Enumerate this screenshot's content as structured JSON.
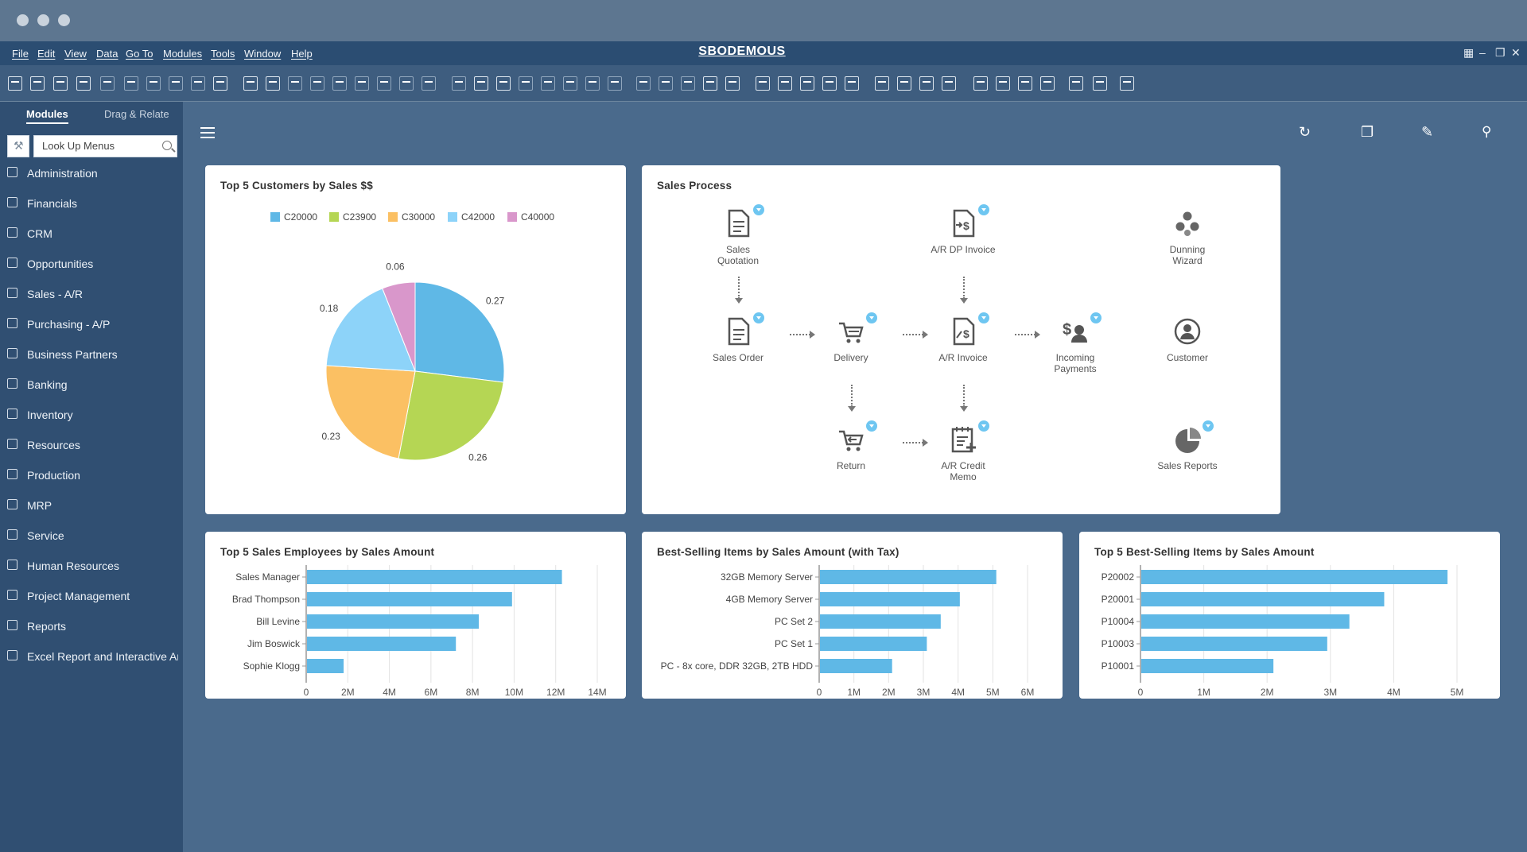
{
  "app": {
    "title": "SBODEMOUS",
    "menu": [
      "File",
      "Edit",
      "View",
      "Data",
      "Go To",
      "Modules",
      "Tools",
      "Window",
      "Help"
    ]
  },
  "sidebar": {
    "tabs": [
      "Modules",
      "Drag & Relate"
    ],
    "search_placeholder": "Look Up Menus",
    "items": [
      {
        "label": "Administration",
        "icon": "admin-icon"
      },
      {
        "label": "Financials",
        "icon": "financials-icon"
      },
      {
        "label": "CRM",
        "icon": "crm-icon"
      },
      {
        "label": "Opportunities",
        "icon": "opportunities-icon"
      },
      {
        "label": "Sales - A/R",
        "icon": "sales-icon"
      },
      {
        "label": "Purchasing - A/P",
        "icon": "cart-icon"
      },
      {
        "label": "Business Partners",
        "icon": "partners-icon"
      },
      {
        "label": "Banking",
        "icon": "bank-icon"
      },
      {
        "label": "Inventory",
        "icon": "inventory-icon"
      },
      {
        "label": "Resources",
        "icon": "resources-icon"
      },
      {
        "label": "Production",
        "icon": "production-icon"
      },
      {
        "label": "MRP",
        "icon": "mrp-icon"
      },
      {
        "label": "Service",
        "icon": "service-icon"
      },
      {
        "label": "Human Resources",
        "icon": "person-icon"
      },
      {
        "label": "Project Management",
        "icon": "project-icon"
      },
      {
        "label": "Reports",
        "icon": "reports-icon"
      },
      {
        "label": "Excel Report and Interactive Analysis",
        "icon": "excel-icon"
      }
    ]
  },
  "cards": {
    "customers": {
      "title": "Top 5 Customers by Sales $$"
    },
    "process": {
      "title": "Sales Process",
      "nodes": {
        "sales_quotation": "Sales\nQuotation",
        "ar_dp_invoice": "A/R DP Invoice",
        "dunning_wizard": "Dunning\nWizard",
        "sales_order": "Sales Order",
        "delivery": "Delivery",
        "ar_invoice": "A/R Invoice",
        "incoming_payments": "Incoming\nPayments",
        "customer": "Customer",
        "return": "Return",
        "ar_credit_memo": "A/R Credit\nMemo",
        "sales_reports": "Sales Reports"
      }
    },
    "employees": {
      "title": "Top 5 Sales Employees by Sales Amount"
    },
    "items_tax": {
      "title": "Best-Selling Items by Sales Amount (with Tax)"
    },
    "items": {
      "title": "Top 5 Best-Selling Items by Sales Amount"
    }
  },
  "colors": {
    "bar": "#5fb8e6",
    "pie": [
      "#5fb8e6",
      "#b5d654",
      "#fbc063",
      "#8dd3f9",
      "#d997cb"
    ]
  },
  "chart_data": [
    {
      "type": "pie",
      "title": "Top 5 Customers by Sales $$",
      "categories": [
        "C20000",
        "C23900",
        "C30000",
        "C42000",
        "C40000"
      ],
      "values": [
        0.27,
        0.26,
        0.23,
        0.18,
        0.06
      ],
      "legend": "top"
    },
    {
      "type": "bar",
      "orientation": "horizontal",
      "title": "Top 5 Sales Employees by Sales Amount",
      "categories": [
        "Sales Manager",
        "Brad Thompson",
        "Bill Levine",
        "Jim Boswick",
        "Sophie Klogg"
      ],
      "values": [
        12.3,
        9.9,
        8.3,
        7.2,
        1.8
      ],
      "value_unit": "M",
      "xlim": [
        0,
        14
      ],
      "ticks": [
        "0",
        "2M",
        "4M",
        "6M",
        "8M",
        "10M",
        "12M",
        "14M"
      ],
      "grid": true
    },
    {
      "type": "bar",
      "orientation": "horizontal",
      "title": "Best-Selling Items by Sales Amount (with Tax)",
      "categories": [
        "32GB Memory Server",
        "4GB Memory Server",
        "PC Set 2",
        "PC Set 1",
        "PC - 8x core, DDR 32GB, 2TB HDD"
      ],
      "values": [
        5.1,
        4.05,
        3.5,
        3.1,
        2.1
      ],
      "value_unit": "M",
      "xlim": [
        0,
        6
      ],
      "ticks": [
        "0",
        "1M",
        "2M",
        "3M",
        "4M",
        "5M",
        "6M"
      ],
      "grid": true
    },
    {
      "type": "bar",
      "orientation": "horizontal",
      "title": "Top 5 Best-Selling Items by Sales Amount",
      "categories": [
        "P20002",
        "P20001",
        "P10004",
        "P10003",
        "P10001"
      ],
      "values": [
        4.85,
        3.85,
        3.3,
        2.95,
        2.1
      ],
      "value_unit": "M",
      "xlim": [
        0,
        5
      ],
      "ticks": [
        "0",
        "1M",
        "2M",
        "3M",
        "4M",
        "5M"
      ],
      "grid": true
    }
  ]
}
